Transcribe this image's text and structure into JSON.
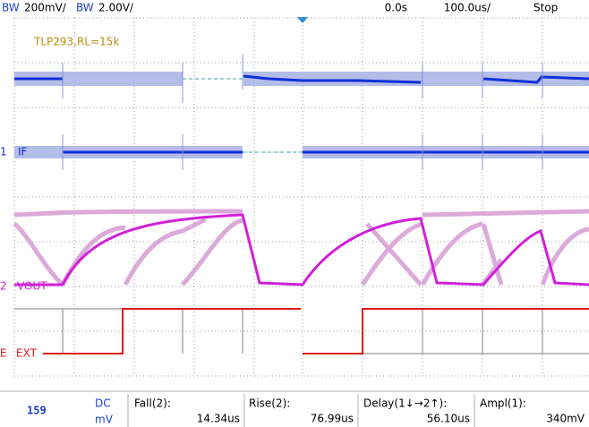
{
  "status_bar": {
    "ch1_bw": "BW",
    "ch1_scale": "200mV/",
    "ch2_bw": "BW",
    "ch2_scale": "2.00V/",
    "trigger_time": "0.0s",
    "time_scale": "100.0us/",
    "run_state": "Stop"
  },
  "annotation": "TLP293,RL=15k",
  "channels": [
    {
      "number": "1",
      "label": "IF"
    },
    {
      "number": "2",
      "label": "VOUT"
    },
    {
      "number": "E",
      "label": "EXT"
    }
  ],
  "readout": {
    "value": "159",
    "coupling": "DC",
    "unit": "mV"
  },
  "measurements": [
    {
      "name": "Fall(2):",
      "value": "14.34us"
    },
    {
      "name": "Rise(2):",
      "value": "76.99us"
    },
    {
      "name": "Delay(1↓→2↑):",
      "value": "56.10us"
    },
    {
      "name": "Ampl(1):",
      "value": "340mV"
    }
  ]
}
